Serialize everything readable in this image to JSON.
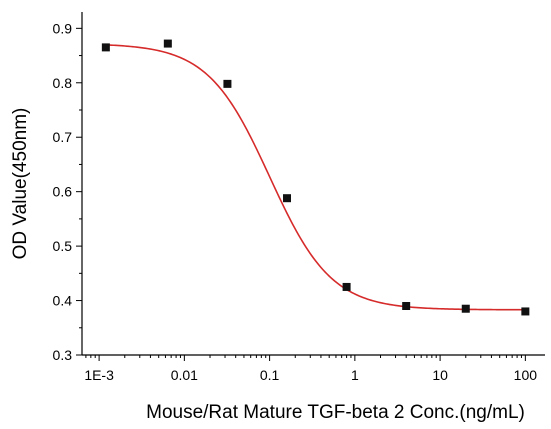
{
  "chart_data": {
    "type": "scatter",
    "title": "",
    "xlabel": "Mouse/Rat Mature TGF-beta 2 Conc.(ng/mL)",
    "ylabel": "OD Value(450nm)",
    "x_scale": "log",
    "xlim": [
      0.00063,
      170
    ],
    "ylim": [
      0.3,
      0.93
    ],
    "x_ticks": [
      0.001,
      0.01,
      0.1,
      1,
      10,
      100
    ],
    "x_tick_labels": [
      "1E-3",
      "0.01",
      "0.1",
      "1",
      "10",
      "100"
    ],
    "y_ticks": [
      0.3,
      0.4,
      0.5,
      0.6,
      0.7,
      0.8,
      0.9
    ],
    "y_tick_labels": [
      "0.3",
      "0.4",
      "0.5",
      "0.6",
      "0.7",
      "0.8",
      "0.9"
    ],
    "grid": false,
    "legend": "none",
    "series": [
      {
        "x": [
          0.0012,
          0.0064,
          0.032,
          0.16,
          0.8,
          4,
          20,
          100
        ],
        "y": [
          0.865,
          0.872,
          0.798,
          0.588,
          0.425,
          0.39,
          0.385,
          0.38
        ],
        "marker": "square",
        "color": "#111111"
      }
    ],
    "fit_curve": {
      "type": "four-parameter-logistic",
      "top": 0.872,
      "bottom": 0.383,
      "ec50": 0.1,
      "hill": 1.2,
      "color": "#d62b2b"
    }
  }
}
